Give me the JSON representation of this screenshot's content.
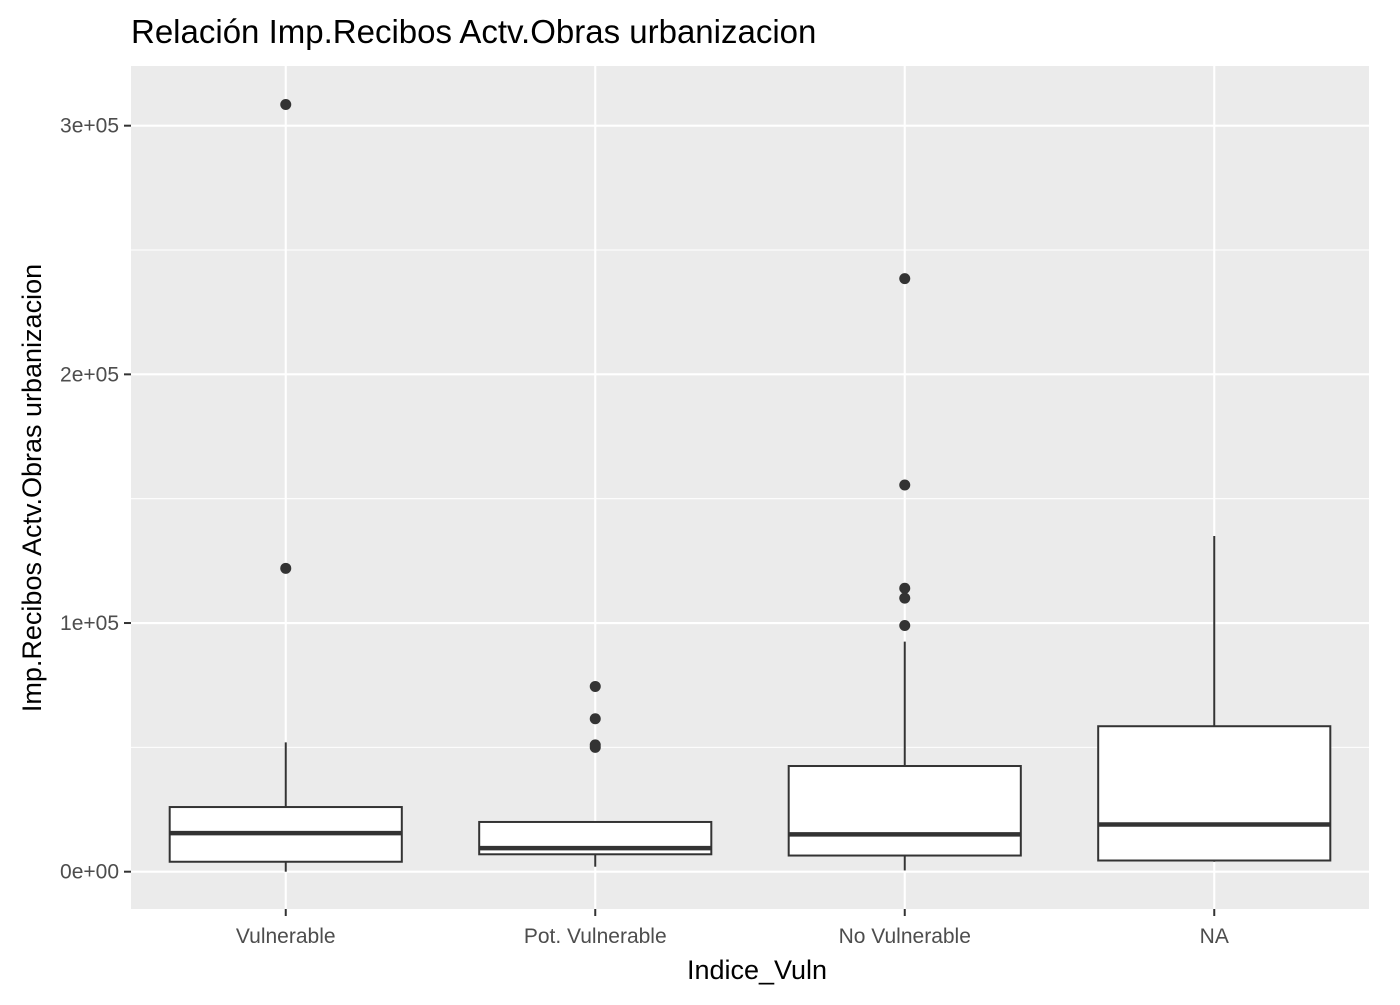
{
  "chart_data": {
    "type": "box",
    "title": "Relación  Imp.Recibos Actv.Obras urbanizacion",
    "xlabel": "Indice_Vuln",
    "ylabel": "Imp.Recibos Actv.Obras urbanizacion",
    "categories": [
      "Vulnerable",
      "Pot. Vulnerable",
      "No Vulnerable",
      "NA"
    ],
    "y_ticks": [
      0,
      100000,
      200000,
      300000
    ],
    "y_tick_labels": [
      "0e+00",
      "1e+05",
      "2e+05",
      "3e+05"
    ],
    "ylim": [
      -15000,
      324000
    ],
    "grid": true,
    "legend": "none",
    "boxes": [
      {
        "category": "Vulnerable",
        "whisker_low": 0,
        "q1": 4000,
        "median": 15500,
        "q3": 26000,
        "whisker_high": 52000,
        "outliers": [
          122000,
          308500
        ]
      },
      {
        "category": "Pot. Vulnerable",
        "whisker_low": 2000,
        "q1": 7000,
        "median": 9500,
        "q3": 20000,
        "whisker_high": 20000,
        "outliers": [
          50000,
          51000,
          61500,
          74500
        ]
      },
      {
        "category": "No Vulnerable",
        "whisker_low": 500,
        "q1": 6500,
        "median": 15000,
        "q3": 42500,
        "whisker_high": 92500,
        "outliers": [
          99000,
          110000,
          114000,
          155500,
          238500
        ]
      },
      {
        "category": "NA",
        "whisker_low": 4000,
        "q1": 4500,
        "median": 19000,
        "q3": 58500,
        "whisker_high": 135000,
        "outliers": []
      }
    ],
    "colors": {
      "panel_background": "#EBEBEB",
      "grid": "#FFFFFF",
      "box_fill": "#FFFFFF",
      "box_line": "#333333",
      "tick_text": "#4D4D4D",
      "title_text": "#000000"
    }
  }
}
